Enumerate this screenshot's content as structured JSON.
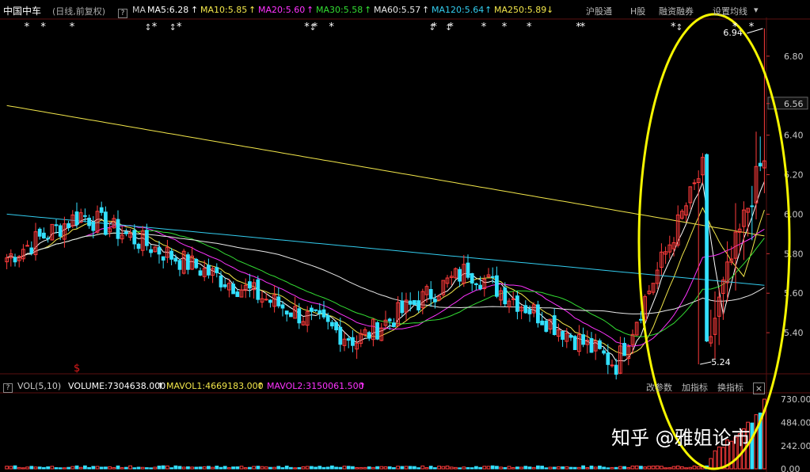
{
  "header": {
    "stock_name": "中国中车",
    "period": "(日线,前复权)",
    "help_icon": "?",
    "ma_label": "MA",
    "ma": [
      {
        "label": "MA5:6.28",
        "color": "#ffffff"
      },
      {
        "label": "MA10:5.85",
        "color": "#f2e64a"
      },
      {
        "label": "MA20:5.60",
        "color": "#ff33ff"
      },
      {
        "label": "MA30:5.58",
        "color": "#33dd33"
      },
      {
        "label": "MA60:5.57",
        "color": "#e8e8e8"
      },
      {
        "label": "MA120:5.64",
        "color": "#33ccee"
      },
      {
        "label": "MA250:5.89",
        "color": "#f2e64a"
      }
    ],
    "buttons": [
      "沪股通",
      "H股",
      "融资融券",
      "设置均线"
    ]
  },
  "volume_header": {
    "help_icon": "?",
    "vol_label": "VOL(5,10)",
    "volume": "VOLUME:7304638.000",
    "mavol1": "MAVOL1:4669183.000",
    "mavol2": "MAVOL2:3150061.500",
    "buttons": [
      "改参数",
      "加指标",
      "换指标"
    ],
    "close_icon": "×"
  },
  "watermark": "知乎 @雅姐论市",
  "colors": {
    "up": "#ff3b3b",
    "down": "#33e0ff",
    "highlight": "#f5f500",
    "grid": "#5a1010"
  },
  "chart_data": {
    "type": "candlestick",
    "y_axis_labels": [
      "6.80",
      "6.56",
      "6.40",
      "6.20",
      "6.00",
      "5.80",
      "5.60",
      "5.40"
    ],
    "y_ticks": [
      6.8,
      6.56,
      6.4,
      6.2,
      6.0,
      5.8,
      5.6,
      5.4
    ],
    "ylim": [
      5.2,
      6.98
    ],
    "current_price_label": "6.56",
    "annotations": [
      {
        "text": "6.94",
        "value": 6.94
      },
      {
        "text": "5.24",
        "value": 5.24
      }
    ],
    "volume_axis_labels": [
      "730.00",
      "484.00",
      "242.00",
      "0.00"
    ],
    "volume_ticks": [
      730,
      484,
      242,
      0
    ],
    "volume_ylim": [
      0,
      780
    ],
    "star_marks": [
      5,
      9,
      16,
      36,
      42,
      73,
      75,
      79,
      104,
      108,
      116,
      121,
      127,
      139,
      140,
      162,
      177,
      181
    ],
    "arrow_marks": [
      34,
      40,
      74,
      103,
      107,
      163
    ],
    "dividend_mark_label": "$",
    "dividend_mark_index": 17,
    "trend_summary": [
      {
        "phase": "start",
        "price": 5.78
      },
      {
        "phase": "early-high",
        "price": 6.0
      },
      {
        "phase": "mid-low",
        "price": 5.36
      },
      {
        "phase": "rebound",
        "price": 5.72
      },
      {
        "phase": "pre-rally-low",
        "price": 5.24
      },
      {
        "phase": "rally-high",
        "price": 6.94
      }
    ],
    "ma250_range": [
      6.55,
      5.89
    ],
    "ma120_range": [
      6.0,
      5.64
    ]
  }
}
